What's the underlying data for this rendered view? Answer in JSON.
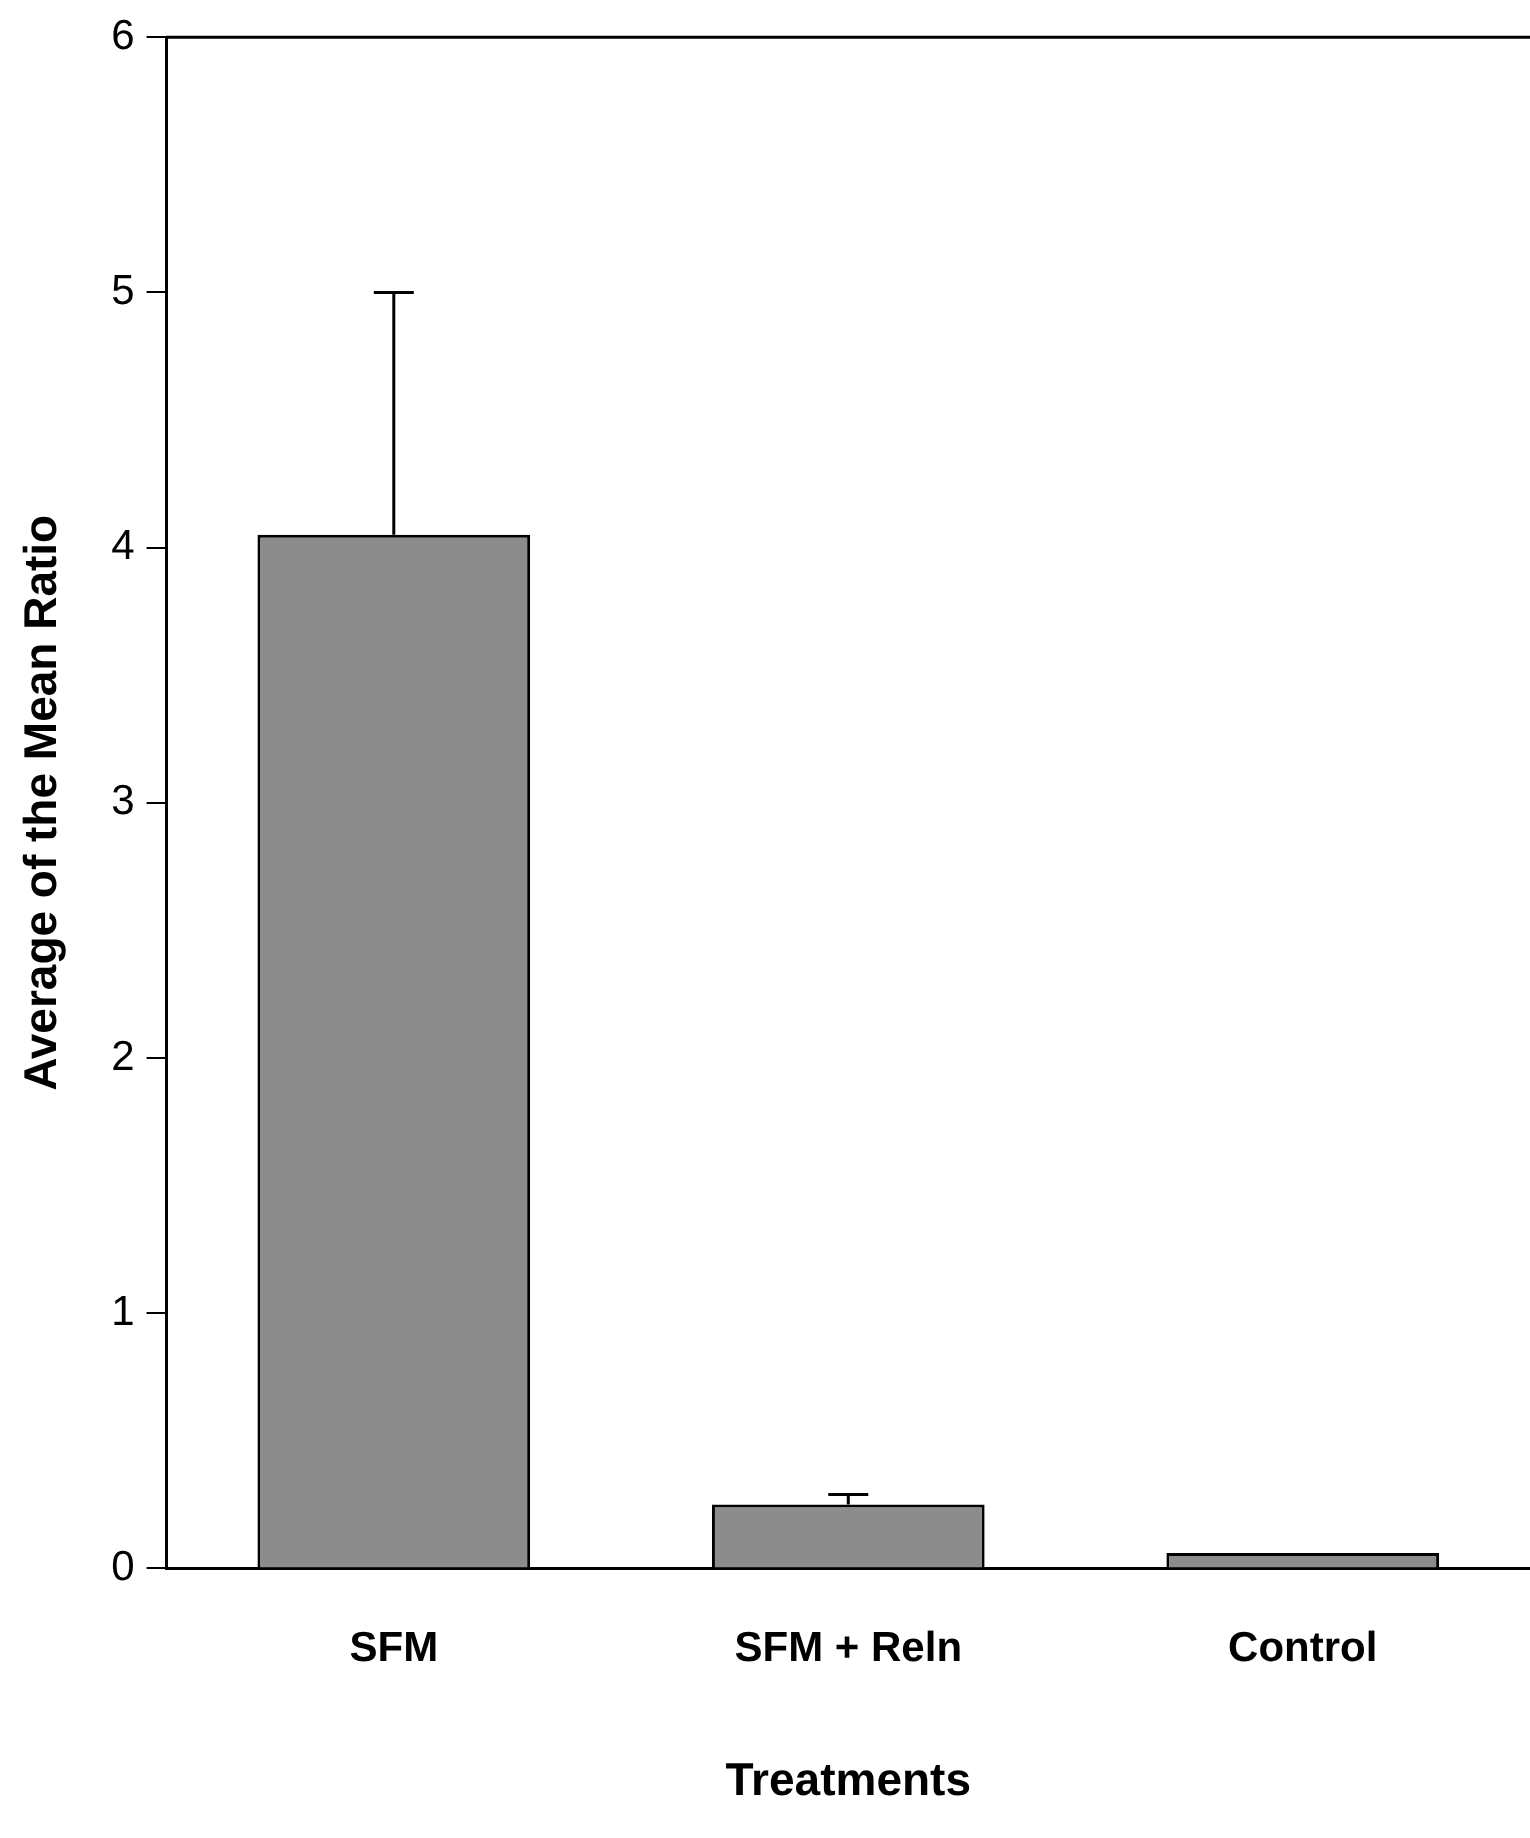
{
  "chart_data": {
    "type": "bar",
    "xlabel": "Treatments",
    "ylabel": "Average of the Mean Ratio",
    "categories": [
      "SFM",
      "SFM + Reln",
      "Control"
    ],
    "values": [
      4.05,
      0.25,
      0.06
    ],
    "errors": [
      [
        4.05,
        5.0
      ],
      [
        0.25,
        0.29
      ],
      null
    ],
    "color": "#8c8c8c",
    "ylim": [
      0,
      6
    ],
    "yticks": [
      0,
      1,
      2,
      3,
      4,
      5,
      6
    ],
    "grid": false,
    "legend": false
  }
}
